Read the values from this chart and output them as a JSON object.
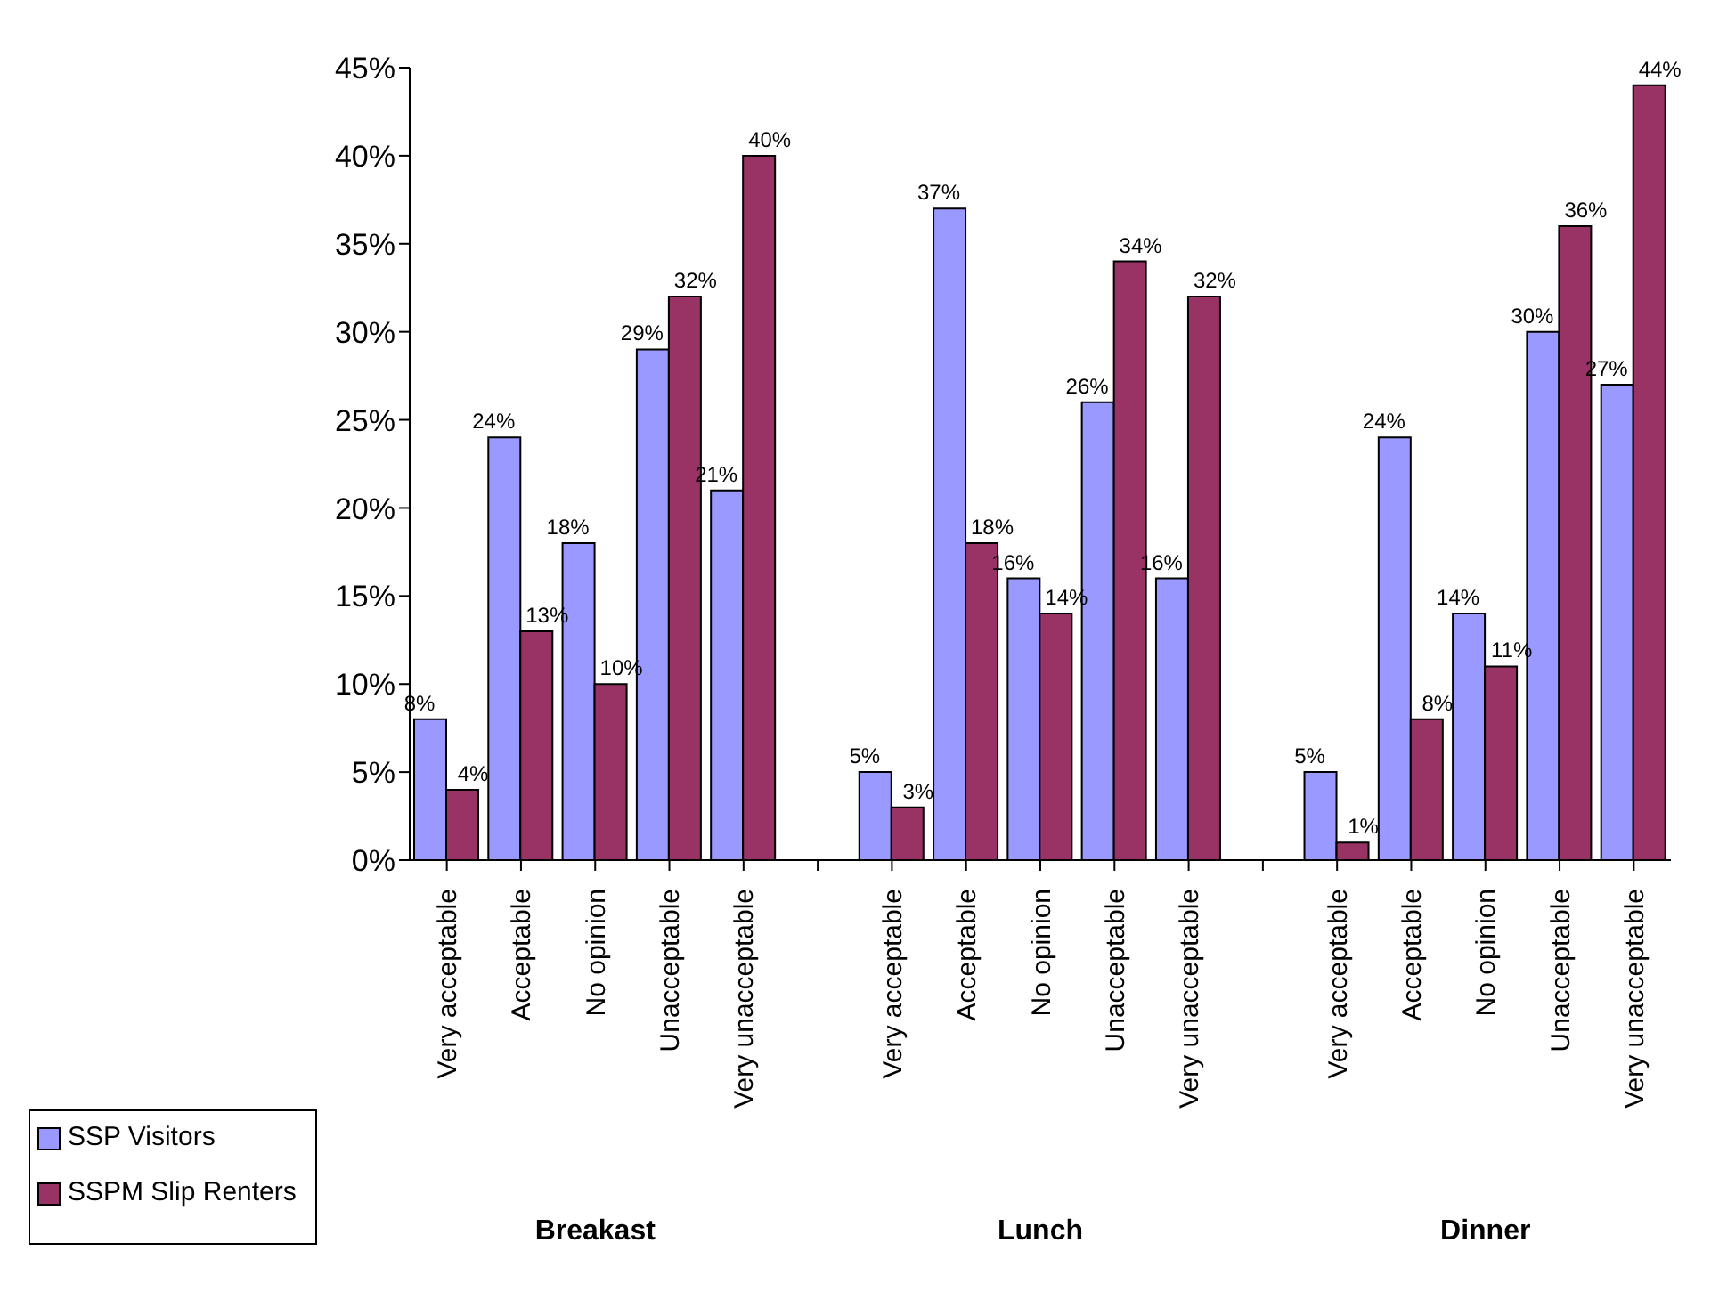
{
  "chart_data": {
    "type": "bar",
    "categories": [
      "Very acceptable",
      "Acceptable",
      "No opinion",
      "Unacceptable",
      "Very unacceptable",
      null,
      "Very acceptable",
      "Acceptable",
      "No opinion",
      "Unacceptable",
      "Very unacceptable",
      null,
      "Very acceptable",
      "Acceptable",
      "No opinion",
      "Unacceptable",
      "Very unacceptable"
    ],
    "series": [
      {
        "name": "SSP Visitors",
        "color": "#9999ff",
        "values": [
          8,
          24,
          18,
          29,
          21,
          null,
          5,
          37,
          16,
          26,
          16,
          null,
          5,
          24,
          14,
          30,
          27
        ],
        "value_labels": [
          "8%",
          "24%",
          "18%",
          "29%",
          "21%",
          null,
          "5%",
          "37%",
          "16%",
          "26%",
          "16%",
          null,
          "5%",
          "24%",
          "14%",
          "30%",
          "27%"
        ]
      },
      {
        "name": "SSPM Slip Renters",
        "color": "#993366",
        "values": [
          4,
          13,
          10,
          32,
          40,
          null,
          3,
          18,
          14,
          34,
          32,
          null,
          1,
          8,
          11,
          36,
          44
        ],
        "value_labels": [
          "4%",
          "13%",
          "10%",
          "32%",
          "40%",
          null,
          "3%",
          "18%",
          "14%",
          "34%",
          "32%",
          null,
          "1%",
          "8%",
          "11%",
          "36%",
          "44%"
        ]
      }
    ],
    "ylim": [
      0,
      45
    ],
    "yticks": [
      {
        "value": 0,
        "label": "0%"
      },
      {
        "value": 5,
        "label": "5%"
      },
      {
        "value": 10,
        "label": "10%"
      },
      {
        "value": 15,
        "label": "15%"
      },
      {
        "value": 20,
        "label": "20%"
      },
      {
        "value": 25,
        "label": "25%"
      },
      {
        "value": 30,
        "label": "30%"
      },
      {
        "value": 35,
        "label": "35%"
      },
      {
        "value": 40,
        "label": "40%"
      },
      {
        "value": 45,
        "label": "45%"
      }
    ],
    "annotations": [
      "Breakast",
      "Lunch",
      "Dinner"
    ],
    "grid": false,
    "legend": "bottom left"
  }
}
